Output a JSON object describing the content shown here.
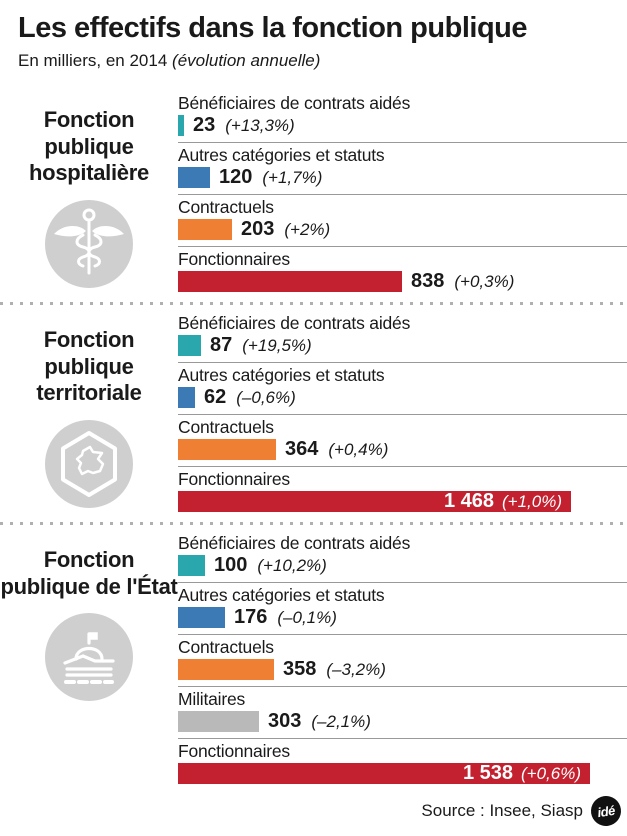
{
  "header": {
    "title": "Les effectifs dans la fonction publique",
    "subtitle_regular": "En milliers, en 2014",
    "subtitle_italic": " (évolution annuelle)"
  },
  "colors": {
    "teal": "#2aa7ac",
    "blue": "#3c7ab6",
    "orange": "#ef7f33",
    "red": "#c32130",
    "gray": "#b9b9b9",
    "icon_bg": "#cfcfcf",
    "separator": "#999999",
    "dot": "#b0b0b0",
    "logo_bg": "#111111"
  },
  "sections": [
    {
      "id": "hospitaliere",
      "title": "Fonction publique hospitalière",
      "icon": "caduceus-icon",
      "rows": [
        {
          "label": "Bénéficiaires de contrats aidés",
          "value": 23,
          "value_label": "23",
          "pct": "(+13,3%)",
          "color": "teal",
          "inside": false
        },
        {
          "label": "Autres catégories et statuts",
          "value": 120,
          "value_label": "120",
          "pct": "(+1,7%)",
          "color": "blue",
          "inside": false
        },
        {
          "label": "Contractuels",
          "value": 203,
          "value_label": "203",
          "pct": "(+2%)",
          "color": "orange",
          "inside": false
        },
        {
          "label": "Fonctionnaires",
          "value": 838,
          "value_label": "838",
          "pct": "(+0,3%)",
          "color": "red",
          "inside": false
        }
      ]
    },
    {
      "id": "territoriale",
      "title": "Fonction publique territoriale",
      "icon": "hexagon-france-icon",
      "rows": [
        {
          "label": "Bénéficiaires de contrats aidés",
          "value": 87,
          "value_label": "87",
          "pct": "(+19,5%)",
          "color": "teal",
          "inside": false
        },
        {
          "label": "Autres catégories et statuts",
          "value": 62,
          "value_label": "62",
          "pct": "(–0,6%)",
          "color": "blue",
          "inside": false
        },
        {
          "label": "Contractuels",
          "value": 364,
          "value_label": "364",
          "pct": "(+0,4%)",
          "color": "orange",
          "inside": false
        },
        {
          "label": "Fonctionnaires",
          "value": 1468,
          "value_label": "1 468",
          "pct": "(+1,0%)",
          "color": "red",
          "inside": true
        }
      ]
    },
    {
      "id": "etat",
      "title": "Fonction publique de l'État",
      "icon": "state-building-icon",
      "rows": [
        {
          "label": "Bénéficiaires de contrats aidés",
          "value": 100,
          "value_label": "100",
          "pct": "(+10,2%)",
          "color": "teal",
          "inside": false
        },
        {
          "label": "Autres catégories et statuts",
          "value": 176,
          "value_label": "176",
          "pct": "(–0,1%)",
          "color": "blue",
          "inside": false
        },
        {
          "label": "Contractuels",
          "value": 358,
          "value_label": "358",
          "pct": "(–3,2%)",
          "color": "orange",
          "inside": false
        },
        {
          "label": "Militaires",
          "value": 303,
          "value_label": "303",
          "pct": "(–2,1%)",
          "color": "gray",
          "inside": false
        },
        {
          "label": "Fonctionnaires",
          "value": 1538,
          "value_label": "1 538",
          "pct": "(+0,6%)",
          "color": "red",
          "inside": true
        }
      ]
    }
  ],
  "footer": {
    "source": "Source : Insee, Siasp",
    "logo": "idé"
  },
  "chart_data": {
    "type": "bar",
    "orientation": "horizontal",
    "title": "Les effectifs dans la fonction publique",
    "subtitle": "En milliers, en 2014 (évolution annuelle)",
    "unit": "milliers",
    "year": 2014,
    "xlim": [
      0,
      1538
    ],
    "grid": false,
    "legend_position": "none",
    "source": "Insee, Siasp",
    "groups": [
      {
        "name": "Fonction publique hospitalière",
        "bars": [
          {
            "category": "Bénéficiaires de contrats aidés",
            "value": 23,
            "annual_change_pct": "+13,3%",
            "color": "#2aa7ac"
          },
          {
            "category": "Autres catégories et statuts",
            "value": 120,
            "annual_change_pct": "+1,7%",
            "color": "#3c7ab6"
          },
          {
            "category": "Contractuels",
            "value": 203,
            "annual_change_pct": "+2%",
            "color": "#ef7f33"
          },
          {
            "category": "Fonctionnaires",
            "value": 838,
            "annual_change_pct": "+0,3%",
            "color": "#c32130"
          }
        ]
      },
      {
        "name": "Fonction publique territoriale",
        "bars": [
          {
            "category": "Bénéficiaires de contrats aidés",
            "value": 87,
            "annual_change_pct": "+19,5%",
            "color": "#2aa7ac"
          },
          {
            "category": "Autres catégories et statuts",
            "value": 62,
            "annual_change_pct": "–0,6%",
            "color": "#3c7ab6"
          },
          {
            "category": "Contractuels",
            "value": 364,
            "annual_change_pct": "+0,4%",
            "color": "#ef7f33"
          },
          {
            "category": "Fonctionnaires",
            "value": 1468,
            "annual_change_pct": "+1,0%",
            "color": "#c32130"
          }
        ]
      },
      {
        "name": "Fonction publique de l'État",
        "bars": [
          {
            "category": "Bénéficiaires de contrats aidés",
            "value": 100,
            "annual_change_pct": "+10,2%",
            "color": "#2aa7ac"
          },
          {
            "category": "Autres catégories et statuts",
            "value": 176,
            "annual_change_pct": "–0,1%",
            "color": "#3c7ab6"
          },
          {
            "category": "Contractuels",
            "value": 358,
            "annual_change_pct": "–3,2%",
            "color": "#ef7f33"
          },
          {
            "category": "Militaires",
            "value": 303,
            "annual_change_pct": "–2,1%",
            "color": "#b9b9b9"
          },
          {
            "category": "Fonctionnaires",
            "value": 1538,
            "annual_change_pct": "+0,6%",
            "color": "#c32130"
          }
        ]
      }
    ]
  }
}
